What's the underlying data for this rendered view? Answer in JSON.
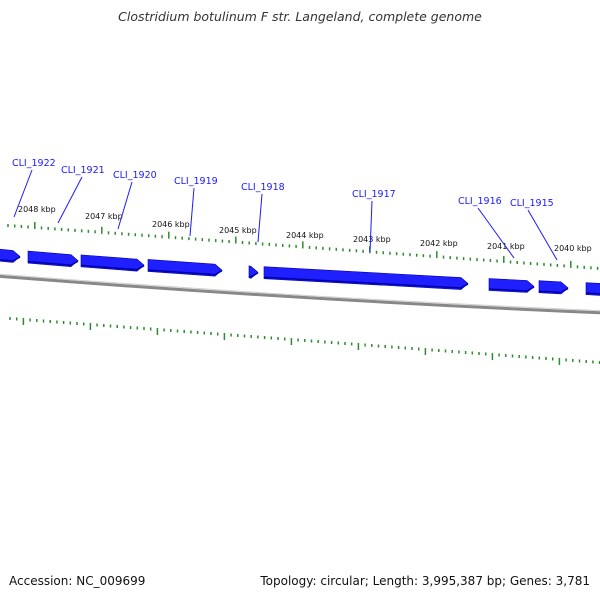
{
  "title": "Clostridium botulinum F str. Langeland, complete genome",
  "footer": {
    "accession": "Accession: NC_009699",
    "summary": "Topology: circular; Length: 3,995,387 bp; Genes: 3,781"
  },
  "colors": {
    "gene": "#1f1fff",
    "gene_shadow": "#0000aa",
    "tick": "#2e8b2e",
    "backbone": "#888888",
    "label": "#1a1aff"
  },
  "kbp_ticks": [
    {
      "label": "2048 kbp"
    },
    {
      "label": "2047 kbp"
    },
    {
      "label": "2046 kbp"
    },
    {
      "label": "2045 kbp"
    },
    {
      "label": "2044 kbp"
    },
    {
      "label": "2043 kbp"
    },
    {
      "label": "2042 kbp"
    },
    {
      "label": "2041 kbp"
    },
    {
      "label": "2040 kbp"
    }
  ],
  "genes": [
    {
      "label": "CLI_1922"
    },
    {
      "label": "CLI_1921"
    },
    {
      "label": "CLI_1920"
    },
    {
      "label": "CLI_1919"
    },
    {
      "label": "CLI_1918"
    },
    {
      "label": "CLI_1917"
    },
    {
      "label": "CLI_1916"
    },
    {
      "label": "CLI_1915"
    }
  ]
}
